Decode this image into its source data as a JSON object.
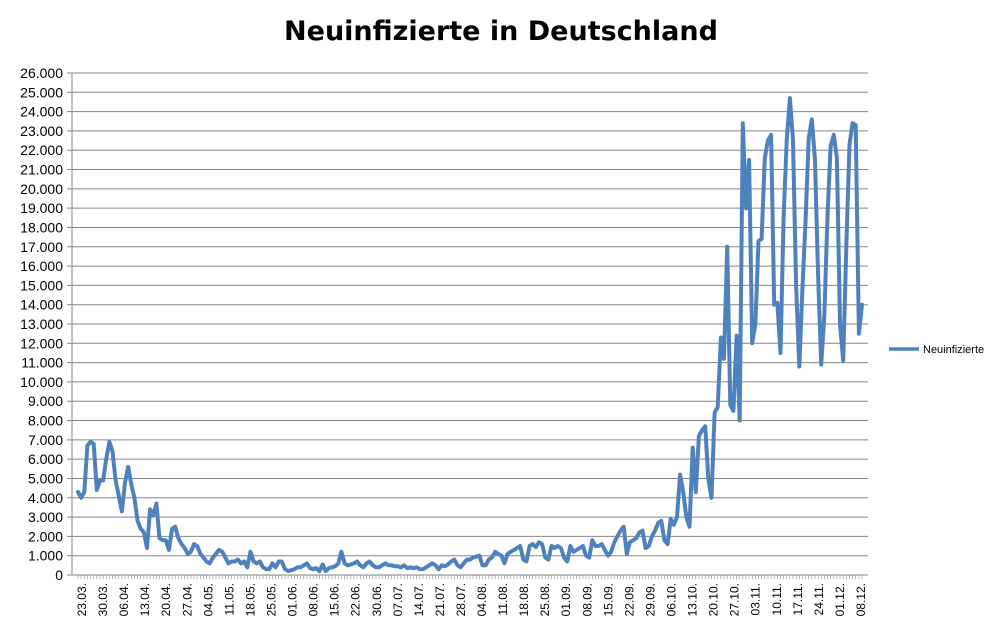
{
  "chart_data": {
    "type": "line",
    "title": "Neuinfizierte in Deutschland",
    "xlabel": "",
    "ylabel": "",
    "ylim": [
      0,
      26000
    ],
    "ytick_labels": [
      "0",
      "1.000",
      "2.000",
      "3.000",
      "4.000",
      "5.000",
      "6.000",
      "7.000",
      "8.000",
      "9.000",
      "10.000",
      "11.000",
      "12.000",
      "13.000",
      "14.000",
      "15.000",
      "16.000",
      "17.000",
      "18.000",
      "19.000",
      "20.000",
      "21.000",
      "22.000",
      "23.000",
      "24.000",
      "25.000",
      "26.000"
    ],
    "xtick_labels": [
      "23.03.",
      "30.03.",
      "06.04.",
      "13.04.",
      "20.04.",
      "27.04.",
      "04.05.",
      "11.05.",
      "18.05.",
      "25.05.",
      "01.06.",
      "08.06.",
      "15.06.",
      "22.06.",
      "30.06.",
      "07.07.",
      "14.07.",
      "21.07.",
      "28.07.",
      "04.08.",
      "11.08.",
      "18.08.",
      "25.08.",
      "01.09.",
      "08.09.",
      "15.09.",
      "22.09.",
      "29.09.",
      "06.10.",
      "13.10.",
      "20.10.",
      "27.10.",
      "03.11.",
      "10.11.",
      "17.11.",
      "24.11.",
      "01.12.",
      "08.12."
    ],
    "grid": true,
    "legend_position": "right",
    "series": [
      {
        "name": "Neuinfizierte",
        "color": "#4f81bd",
        "values": [
          4300,
          4000,
          4300,
          6700,
          6900,
          6800,
          4400,
          4900,
          4900,
          6000,
          6900,
          6400,
          4900,
          4100,
          3300,
          4800,
          5600,
          4700,
          4000,
          2800,
          2400,
          2200,
          1400,
          3400,
          3100,
          3700,
          1900,
          1800,
          1800,
          1300,
          2400,
          2500,
          1900,
          1600,
          1400,
          1100,
          1200,
          1600,
          1500,
          1100,
          900,
          700,
          600,
          900,
          1100,
          1300,
          1200,
          900,
          600,
          700,
          700,
          800,
          600,
          700,
          400,
          1200,
          700,
          600,
          700,
          400,
          300,
          300,
          600,
          400,
          700,
          700,
          300,
          200,
          250,
          300,
          400,
          400,
          500,
          600,
          350,
          300,
          350,
          200,
          550,
          200,
          350,
          400,
          450,
          600,
          1200,
          600,
          500,
          550,
          600,
          700,
          500,
          400,
          600,
          700,
          500,
          400,
          400,
          500,
          600,
          500,
          500,
          450,
          450,
          400,
          500,
          350,
          400,
          350,
          400,
          300,
          300,
          400,
          500,
          600,
          500,
          300,
          500,
          450,
          550,
          700,
          800,
          500,
          400,
          600,
          800,
          800,
          900,
          950,
          1000,
          500,
          500,
          800,
          900,
          1200,
          1100,
          1000,
          600,
          1100,
          1200,
          1300,
          1400,
          1500,
          800,
          700,
          1500,
          1600,
          1450,
          1700,
          1600,
          900,
          800,
          1500,
          1400,
          1500,
          1400,
          900,
          700,
          1500,
          1200,
          1300,
          1400,
          1500,
          1000,
          900,
          1800,
          1500,
          1500,
          1600,
          1300,
          1000,
          1200,
          1700,
          2000,
          2300,
          2500,
          1100,
          1700,
          1800,
          1900,
          2200,
          2300,
          1400,
          1500,
          2000,
          2300,
          2700,
          2800,
          1800,
          1600,
          2900,
          2600,
          3000,
          5200,
          4300,
          3000,
          2500,
          6600,
          4300,
          7200,
          7500,
          7700,
          5000,
          4000,
          8400,
          8700,
          12300,
          11200,
          17000,
          8800,
          8500,
          12400,
          8000,
          23400,
          19000,
          21500,
          12000,
          13000,
          17300,
          17400,
          21600,
          22500,
          22800,
          14000,
          14100,
          11500,
          18500,
          22500,
          24700,
          22500,
          15000,
          10800,
          14800,
          18400,
          22600,
          23600,
          21500,
          15500,
          10900,
          13500,
          18600,
          22200,
          22800,
          21600,
          13000,
          11100,
          17000,
          22300,
          23400,
          23300,
          12500,
          14000
        ]
      }
    ]
  }
}
